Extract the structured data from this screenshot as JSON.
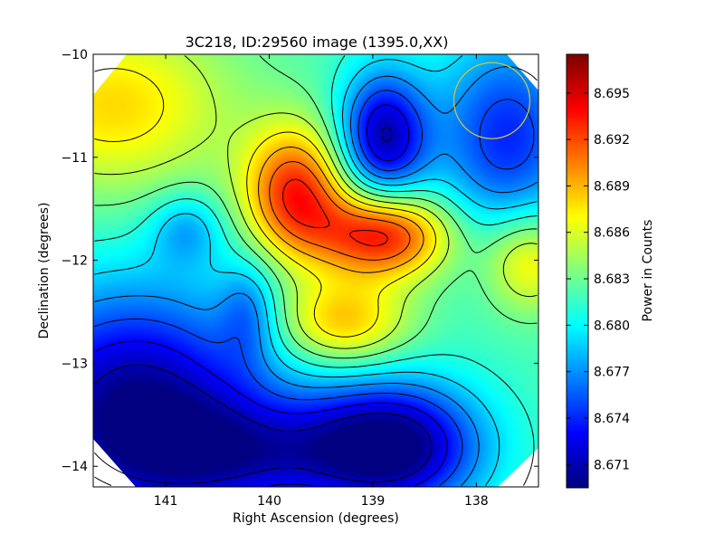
{
  "chart_data": {
    "type": "heatmap",
    "title": "3C218, ID:29560 image (1395.0,XX)",
    "xlabel": "Right Ascension (degrees)",
    "ylabel": "Declination (degrees)",
    "xlim": [
      141.7,
      137.4
    ],
    "ylim": [
      -14.2,
      -10.0
    ],
    "x_ticks": [
      141,
      140,
      139,
      138
    ],
    "x_tick_labels": [
      "141",
      "140",
      "139",
      "138"
    ],
    "y_ticks": [
      -10,
      -11,
      -12,
      -13,
      -14
    ],
    "y_tick_labels": [
      "−10",
      "−11",
      "−12",
      "−13",
      "−14"
    ],
    "colorbar": {
      "label": "Power in Counts",
      "range": [
        8.6695,
        8.6975
      ],
      "ticks": [
        8.671,
        8.674,
        8.677,
        8.68,
        8.683,
        8.686,
        8.689,
        8.692,
        8.695
      ],
      "tick_labels": [
        "8.671",
        "8.674",
        "8.677",
        "8.680",
        "8.683",
        "8.686",
        "8.689",
        "8.692",
        "8.695"
      ],
      "colormap": "jet"
    },
    "base_value": 8.682,
    "features": [
      {
        "ra": 139.75,
        "dec": -11.35,
        "amp": 0.011,
        "sigma_ra": 0.35,
        "sigma_dec": 0.45
      },
      {
        "ra": 138.9,
        "dec": -11.75,
        "amp": 0.012,
        "sigma_ra": 0.45,
        "sigma_dec": 0.3
      },
      {
        "ra": 139.3,
        "dec": -12.6,
        "amp": 0.007,
        "sigma_ra": 0.45,
        "sigma_dec": 0.3
      },
      {
        "ra": 137.5,
        "dec": -12.0,
        "amp": 0.006,
        "sigma_ra": 0.3,
        "sigma_dec": 0.35
      },
      {
        "ra": 141.5,
        "dec": -10.5,
        "amp": 0.006,
        "sigma_ra": 0.8,
        "sigma_dec": 0.6
      },
      {
        "ra": 138.9,
        "dec": -10.8,
        "amp": -0.011,
        "sigma_ra": 0.3,
        "sigma_dec": 0.45
      },
      {
        "ra": 137.7,
        "dec": -10.8,
        "amp": -0.008,
        "sigma_ra": 0.5,
        "sigma_dec": 0.7
      },
      {
        "ra": 141.3,
        "dec": -13.4,
        "amp": -0.012,
        "sigma_ra": 0.9,
        "sigma_dec": 0.8
      },
      {
        "ra": 138.8,
        "dec": -13.8,
        "amp": -0.012,
        "sigma_ra": 0.6,
        "sigma_dec": 0.45
      },
      {
        "ra": 140.2,
        "dec": -13.9,
        "amp": -0.007,
        "sigma_ra": 0.9,
        "sigma_dec": 0.4
      },
      {
        "ra": 140.2,
        "dec": -12.5,
        "amp": -0.004,
        "sigma_ra": 0.2,
        "sigma_dec": 0.35
      },
      {
        "ra": 140.8,
        "dec": -11.7,
        "amp": -0.004,
        "sigma_ra": 0.25,
        "sigma_dec": 0.25
      }
    ],
    "contour_levels": [
      8.671,
      8.673,
      8.675,
      8.677,
      8.679,
      8.681,
      8.683,
      8.685,
      8.687,
      8.689,
      8.691,
      8.693
    ],
    "beam_circle": {
      "ra": 137.85,
      "dec": -10.45,
      "color": "#c8c832"
    },
    "grid": false
  }
}
